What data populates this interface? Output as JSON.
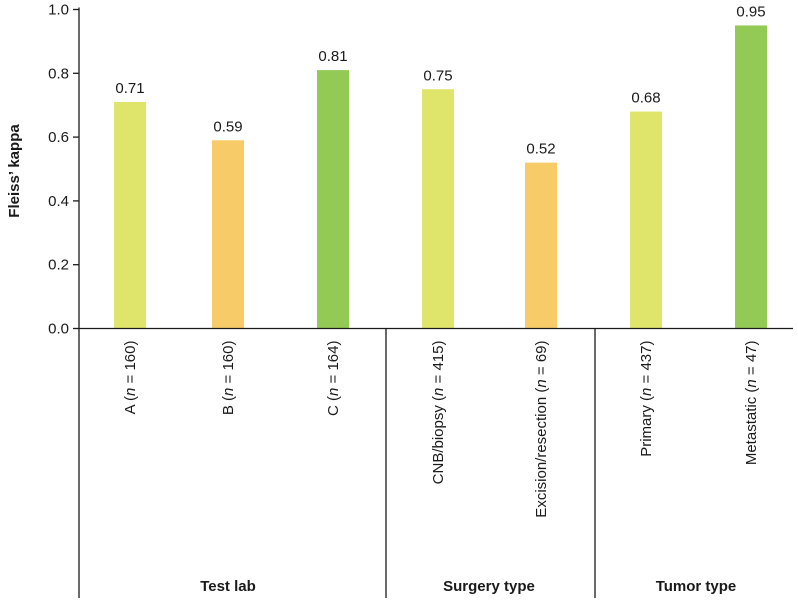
{
  "chart_data": {
    "type": "bar",
    "title": "",
    "xlabel": "",
    "ylabel": "Fleiss’ kappa",
    "ylim": [
      0,
      1.0
    ],
    "yticks": [
      "0.0",
      "0.2",
      "0.4",
      "0.6",
      "0.8",
      "1.0"
    ],
    "categories": [
      {
        "label": "A",
        "n": "160",
        "group": 0
      },
      {
        "label": "B",
        "n": "160",
        "group": 0
      },
      {
        "label": "C",
        "n": "164",
        "group": 0
      },
      {
        "label": "CNB/biopsy",
        "n": "415",
        "group": 1
      },
      {
        "label": "Excision/resection",
        "n": "69",
        "group": 1
      },
      {
        "label": "Primary",
        "n": "437",
        "group": 2
      },
      {
        "label": "Metastatic",
        "n": "47",
        "group": 2
      }
    ],
    "values": [
      0.71,
      0.59,
      0.81,
      0.75,
      0.52,
      0.68,
      0.95
    ],
    "value_labels": [
      "0.71",
      "0.59",
      "0.81",
      "0.75",
      "0.52",
      "0.68",
      "0.95"
    ],
    "groups": [
      "Test lab",
      "Surgery type",
      "Tumor type"
    ],
    "n_prefix": "n",
    "n_equals": " = ",
    "colors": [
      "#dfe46a",
      "#f7cc68",
      "#93c955",
      "#dfe46a",
      "#f7cc68",
      "#dfe46a",
      "#93c955"
    ]
  }
}
